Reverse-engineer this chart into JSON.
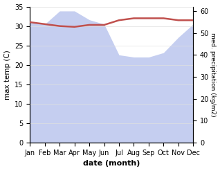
{
  "months": [
    "Jan",
    "Feb",
    "Mar",
    "Apr",
    "May",
    "Jun",
    "Jul",
    "Aug",
    "Sep",
    "Oct",
    "Nov",
    "Dec"
  ],
  "temp": [
    31.0,
    30.5,
    30.0,
    29.8,
    30.3,
    30.3,
    31.5,
    32.0,
    32.0,
    32.0,
    31.5,
    31.5
  ],
  "precipitation": [
    55,
    54,
    60,
    60,
    56,
    54,
    40,
    39,
    39,
    41,
    48,
    54
  ],
  "temp_color": "#c0504d",
  "precip_fill_color": "#c5cef0",
  "bg_color": "#ffffff",
  "xlabel": "date (month)",
  "ylabel_left": "max temp (C)",
  "ylabel_right": "med. precipitation (kg/m2)",
  "ylim_left": [
    0,
    35
  ],
  "ylim_right": [
    0,
    62
  ],
  "yticks_left": [
    0,
    5,
    10,
    15,
    20,
    25,
    30,
    35
  ],
  "yticks_right": [
    0,
    10,
    20,
    30,
    40,
    50,
    60
  ],
  "figsize": [
    3.18,
    2.47
  ],
  "dpi": 100
}
